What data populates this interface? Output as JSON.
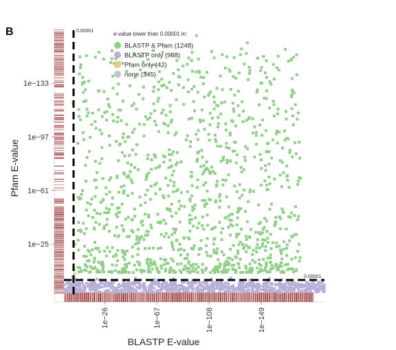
{
  "panel_label": "B",
  "chart_data": {
    "type": "scatter",
    "title": "",
    "xlabel": "BLASTP E-value",
    "ylabel": "Pfam E-value",
    "x_scale": "log (reversed, -log10)",
    "y_scale": "log (reversed, -log10)",
    "x_ticks": [
      "1e−26",
      "1e−67",
      "1e−108",
      "1e−149"
    ],
    "x_tick_exponents": [
      26,
      67,
      108,
      149
    ],
    "y_ticks": [
      "1e−133",
      "1e−97",
      "1e−61",
      "1e−25"
    ],
    "y_tick_exponents": [
      133,
      97,
      61,
      25
    ],
    "xlim_exponent": [
      0,
      180
    ],
    "ylim_exponent": [
      0,
      170
    ],
    "threshold": {
      "value": 1e-05,
      "x_label": "0.00001",
      "y_label": "0.00001"
    },
    "legend": {
      "title": "e-value lower than 0.00001 in:",
      "position": "top-left",
      "entries": [
        {
          "label": "BLASTP & Pfam (1248)",
          "color": "#8fcf87"
        },
        {
          "label": "BLASTP only (988)",
          "color": "#b7b1d8"
        },
        {
          "label": "Pfam only (42)",
          "color": "#f5c287"
        },
        {
          "label": "none (345)",
          "color": "#c4c4c4"
        }
      ]
    },
    "rug_color": "#8b1a1a",
    "series": [
      {
        "name": "BLASTP & Pfam (1248)",
        "color": "#8fcf87",
        "points": [
          [
            15,
            10
          ],
          [
            30,
            20
          ],
          [
            40,
            8
          ],
          [
            55,
            30
          ],
          [
            60,
            15
          ],
          [
            70,
            40
          ],
          [
            75,
            12
          ],
          [
            85,
            25
          ],
          [
            95,
            50
          ],
          [
            100,
            18
          ],
          [
            110,
            35
          ],
          [
            120,
            10
          ],
          [
            125,
            45
          ],
          [
            135,
            22
          ],
          [
            140,
            60
          ],
          [
            150,
            28
          ],
          [
            160,
            40
          ],
          [
            165,
            15
          ],
          [
            18,
            35
          ],
          [
            25,
            55
          ],
          [
            45,
            70
          ],
          [
            50,
            25
          ],
          [
            65,
            85
          ],
          [
            80,
            60
          ],
          [
            90,
            95
          ],
          [
            105,
            75
          ],
          [
            115,
            110
          ],
          [
            130,
            85
          ],
          [
            145,
            100
          ],
          [
            155,
            70
          ],
          [
            35,
            45
          ],
          [
            48,
            100
          ],
          [
            58,
            140
          ],
          [
            72,
            115
          ],
          [
            88,
            130
          ],
          [
            98,
            165
          ],
          [
            112,
            150
          ],
          [
            128,
            125
          ],
          [
            138,
            160
          ],
          [
            152,
            140
          ],
          [
            158,
            95
          ],
          [
            30,
            60
          ],
          [
            62,
            55
          ],
          [
            82,
            35
          ],
          [
            108,
            55
          ],
          [
            132,
            65
          ],
          [
            22,
            20
          ],
          [
            42,
            18
          ],
          [
            68,
            22
          ],
          [
            92,
            12
          ],
          [
            118,
            28
          ],
          [
            142,
            18
          ]
        ]
      },
      {
        "name": "BLASTP only (988)",
        "color": "#b7b1d8",
        "points": [
          [
            8,
            1
          ],
          [
            20,
            1.5
          ],
          [
            35,
            0.8
          ],
          [
            50,
            2
          ],
          [
            65,
            1.2
          ],
          [
            80,
            1.8
          ],
          [
            95,
            0.6
          ],
          [
            110,
            1.5
          ],
          [
            125,
            2.2
          ],
          [
            140,
            1
          ],
          [
            155,
            1.7
          ],
          [
            165,
            0.9
          ]
        ]
      },
      {
        "name": "Pfam only (42)",
        "color": "#f5c287",
        "points": [
          [
            1,
            3
          ],
          [
            2,
            8
          ],
          [
            1.5,
            15
          ],
          [
            3,
            25
          ],
          [
            2.5,
            5
          ],
          [
            1,
            120
          ]
        ]
      },
      {
        "name": "none (345)",
        "color": "#c4c4c4",
        "points": [
          [
            1,
            1
          ],
          [
            2,
            2
          ],
          [
            3,
            1.5
          ],
          [
            1.5,
            0.5
          ]
        ]
      }
    ]
  }
}
